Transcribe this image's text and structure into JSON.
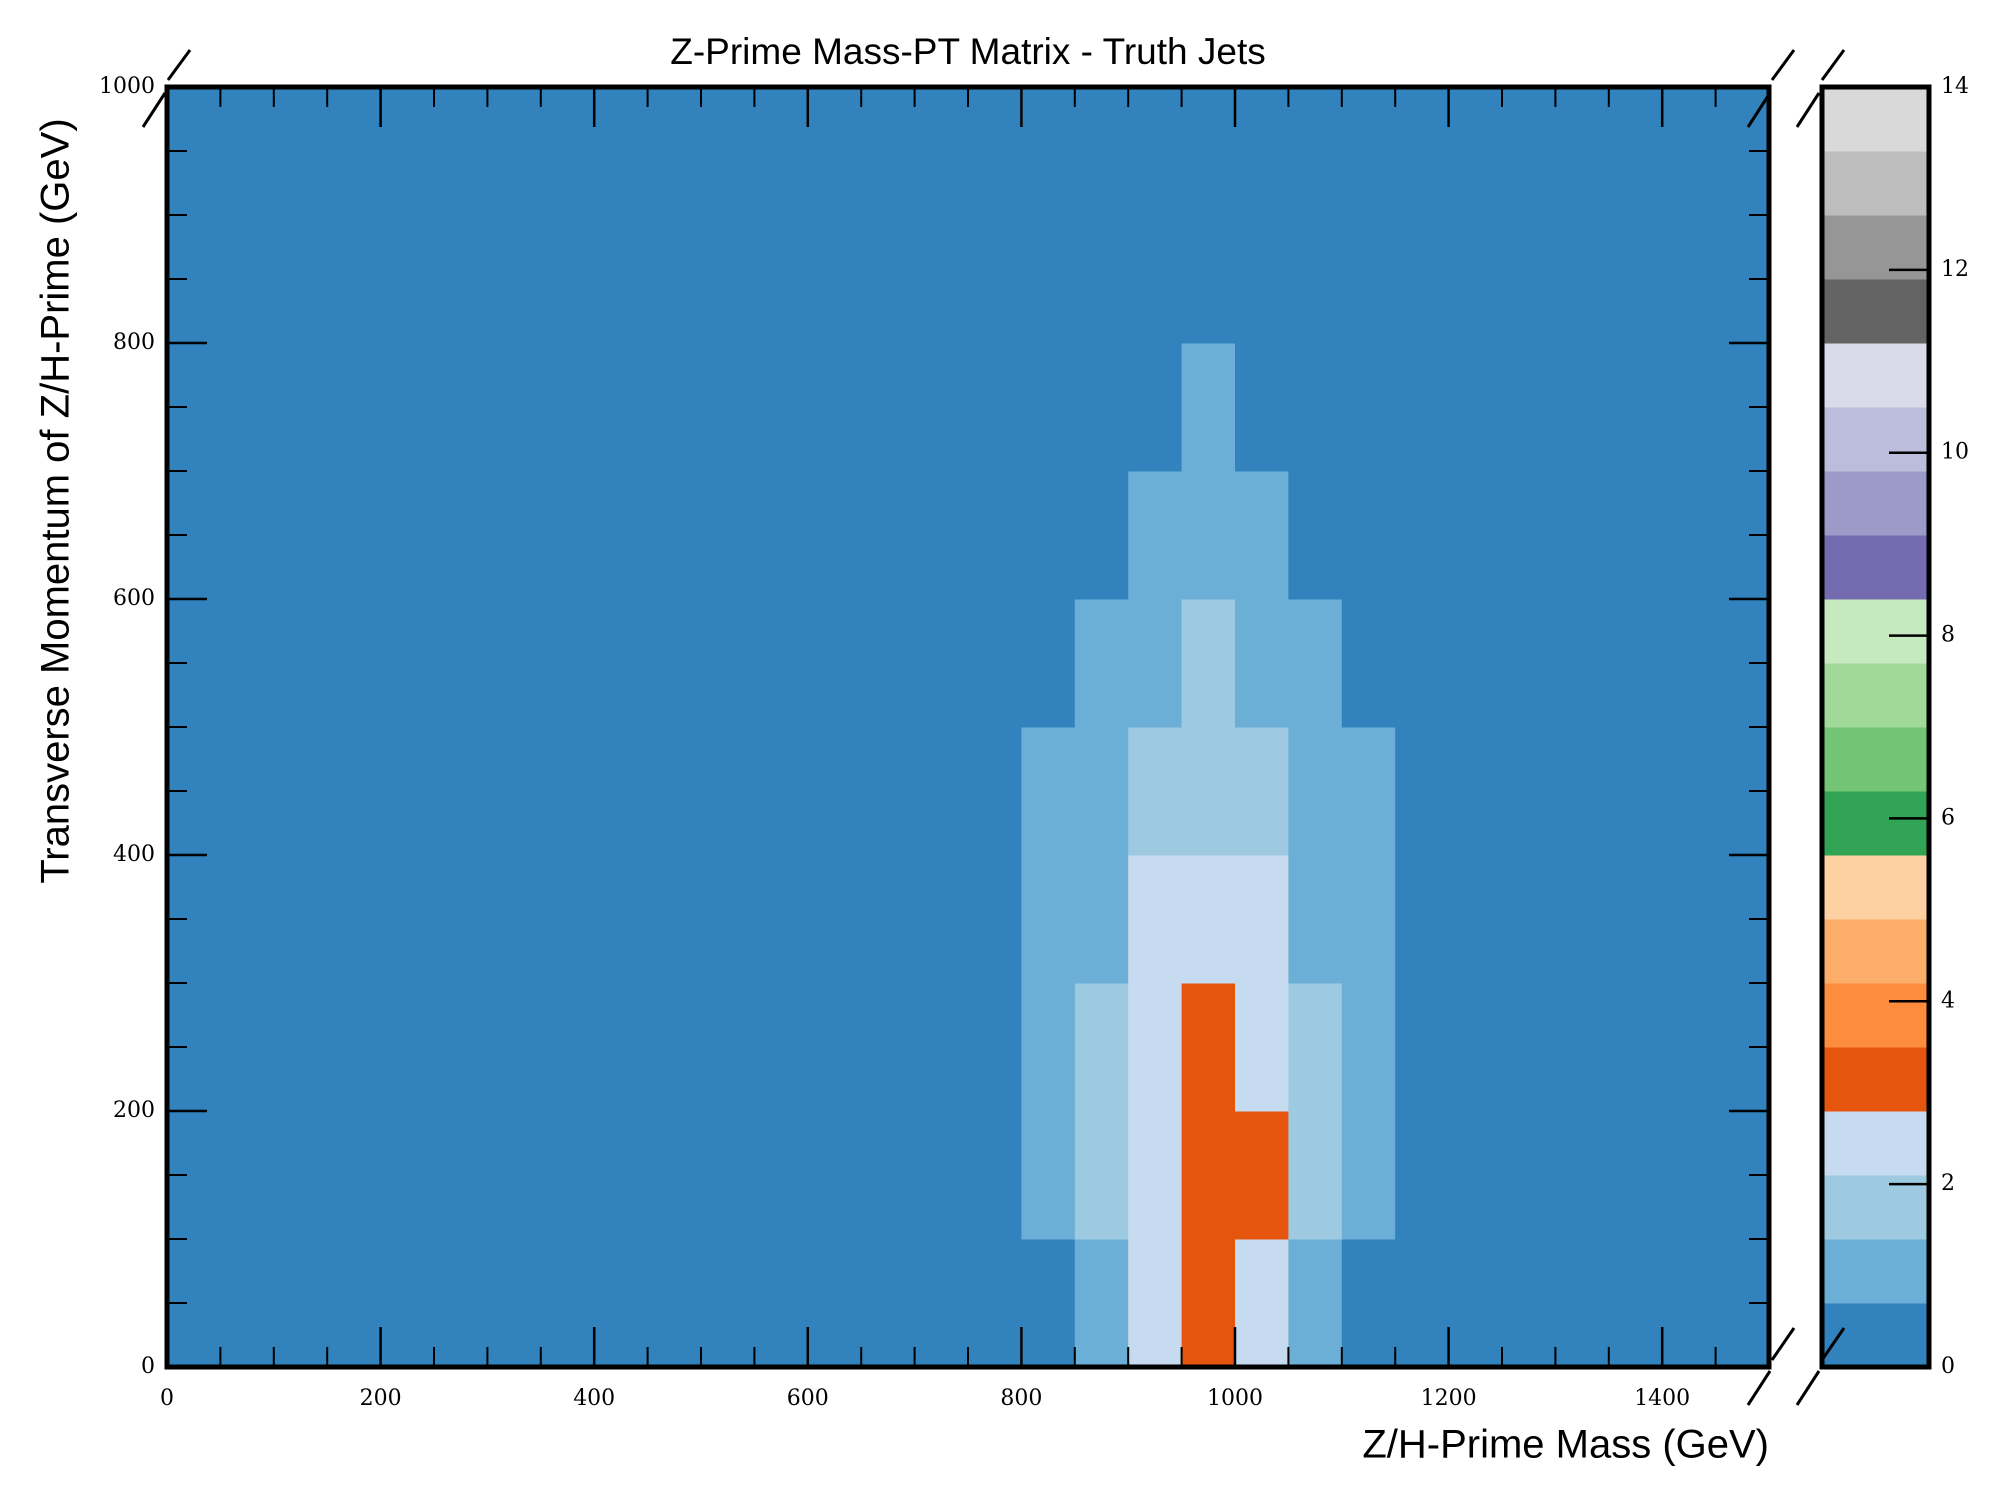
{
  "chart_data": {
    "type": "hist2d",
    "title": "Z-Prime Mass-PT Matrix - Truth Jets",
    "xlabel": "Z/H-Prime Mass (GeV)",
    "ylabel": "Transverse Momentum of Z/H-Prime (GeV)",
    "xbins": [
      0,
      50,
      100,
      150,
      200,
      250,
      300,
      350,
      400,
      450,
      500,
      550,
      600,
      650,
      700,
      750,
      800,
      850,
      900,
      950,
      1000,
      1050,
      1100,
      1150,
      1200,
      1250,
      1300,
      1350,
      1400,
      1450,
      1500
    ],
    "ybins": [
      0,
      100,
      200,
      300,
      400,
      500,
      600,
      700,
      800,
      900,
      1000
    ],
    "values": [
      [
        0,
        0,
        0,
        0,
        0,
        0,
        0,
        0,
        0.1,
        0.1,
        0.1,
        0.1,
        0.2,
        0.2,
        0.2,
        0.3,
        0.5,
        1.0,
        2.2,
        3.0,
        2.4,
        1.1,
        0.6,
        0.4,
        0.3,
        0.2,
        0.2,
        0.1,
        0.1,
        0.1
      ],
      [
        0,
        0,
        0,
        0,
        0,
        0,
        0.1,
        0.1,
        0.1,
        0.2,
        0.2,
        0.2,
        0.3,
        0.3,
        0.4,
        0.6,
        1.0,
        1.6,
        2.8,
        3.4,
        2.9,
        1.7,
        1.0,
        0.6,
        0.4,
        0.3,
        0.2,
        0.1,
        0.1,
        0.1
      ],
      [
        0,
        0,
        0,
        0,
        0,
        0,
        0,
        0.1,
        0.1,
        0.2,
        0.2,
        0.3,
        0.3,
        0.4,
        0.5,
        0.7,
        1.0,
        1.6,
        2.6,
        3.2,
        2.7,
        1.6,
        1.0,
        0.6,
        0.4,
        0.3,
        0.2,
        0.2,
        0.1,
        0.1
      ],
      [
        0,
        0,
        0,
        0,
        0,
        0,
        0,
        0,
        0.1,
        0.1,
        0.2,
        0.2,
        0.3,
        0.3,
        0.4,
        0.6,
        0.9,
        1.4,
        2.2,
        2.6,
        2.2,
        1.4,
        0.9,
        0.6,
        0.4,
        0.3,
        0.2,
        0.2,
        0.1,
        0.1
      ],
      [
        0,
        0,
        0,
        0,
        0,
        0,
        0,
        0,
        0,
        0.1,
        0.1,
        0.2,
        0.2,
        0.3,
        0.4,
        0.5,
        0.8,
        1.2,
        1.8,
        2.0,
        1.7,
        1.1,
        0.8,
        0.5,
        0.4,
        0.3,
        0.2,
        0.1,
        0.1,
        0.1
      ],
      [
        0,
        0,
        0,
        0,
        0,
        0,
        0,
        0,
        0,
        0.1,
        0.1,
        0.1,
        0.2,
        0.2,
        0.3,
        0.4,
        0.6,
        0.9,
        1.3,
        1.5,
        1.3,
        0.9,
        0.6,
        0.4,
        0.3,
        0.2,
        0.2,
        0.1,
        0.1,
        0.1
      ],
      [
        0,
        0,
        0,
        0,
        0,
        0,
        0,
        0,
        0,
        0,
        0.1,
        0.1,
        0.1,
        0.2,
        0.2,
        0.3,
        0.5,
        0.7,
        1.0,
        1.1,
        1.0,
        0.7,
        0.5,
        0.3,
        0.2,
        0.2,
        0.1,
        0.1,
        0.1,
        0.1
      ],
      [
        0,
        0,
        0,
        0,
        0,
        0,
        0,
        0,
        0,
        0,
        0,
        0.1,
        0.1,
        0.1,
        0.2,
        0.2,
        0.3,
        0.5,
        0.7,
        0.8,
        0.7,
        0.5,
        0.3,
        0.2,
        0.2,
        0.1,
        0.1,
        0.1,
        0.1,
        0
      ],
      [
        0,
        0,
        0,
        0,
        0,
        0,
        0,
        0,
        0,
        0,
        0,
        0,
        0.1,
        0.1,
        0.1,
        0.2,
        0.3,
        0.4,
        0.5,
        0.6,
        0.5,
        0.4,
        0.3,
        0.2,
        0.1,
        0.1,
        0.1,
        0.1,
        0,
        0
      ],
      [
        0,
        0,
        0,
        0,
        0,
        0,
        0,
        0,
        0,
        0,
        0,
        0,
        0,
        0.1,
        0.1,
        0.1,
        0.2,
        0.3,
        0.4,
        0.5,
        0.4,
        0.3,
        0.2,
        0.1,
        0.1,
        0.1,
        0.1,
        0,
        0,
        0
      ]
    ],
    "xlim": [
      0,
      1500
    ],
    "ylim": [
      0,
      1000
    ],
    "xticks": [
      0,
      200,
      400,
      600,
      800,
      1000,
      1200,
      1400
    ],
    "yticks": [
      0,
      200,
      400,
      600,
      800,
      1000
    ],
    "x_minor_ticks": [
      50,
      100,
      150,
      250,
      300,
      350,
      450,
      500,
      550,
      650,
      700,
      750,
      850,
      900,
      950,
      1050,
      1100,
      1150,
      1250,
      1300,
      1350,
      1450
    ],
    "y_minor_ticks": [
      50,
      100,
      150,
      250,
      300,
      350,
      450,
      500,
      550,
      650,
      700,
      750,
      850,
      900,
      950
    ],
    "zlim": [
      0,
      14
    ],
    "zticks": [
      0,
      2,
      4,
      6,
      8,
      10,
      12,
      14
    ],
    "colors": [
      "#3182bd",
      "#6baed6",
      "#9ecae1",
      "#c6dbef",
      "#e6550d",
      "#fd8d3c",
      "#fdae6b",
      "#fdd0a2",
      "#31a354",
      "#74c476",
      "#a1d99b",
      "#c7e9c0",
      "#756bb1",
      "#9e9ac8",
      "#bcbddc",
      "#dadaeb",
      "#636363",
      "#969696",
      "#bdbdbd",
      "#d9d9d9"
    ]
  }
}
